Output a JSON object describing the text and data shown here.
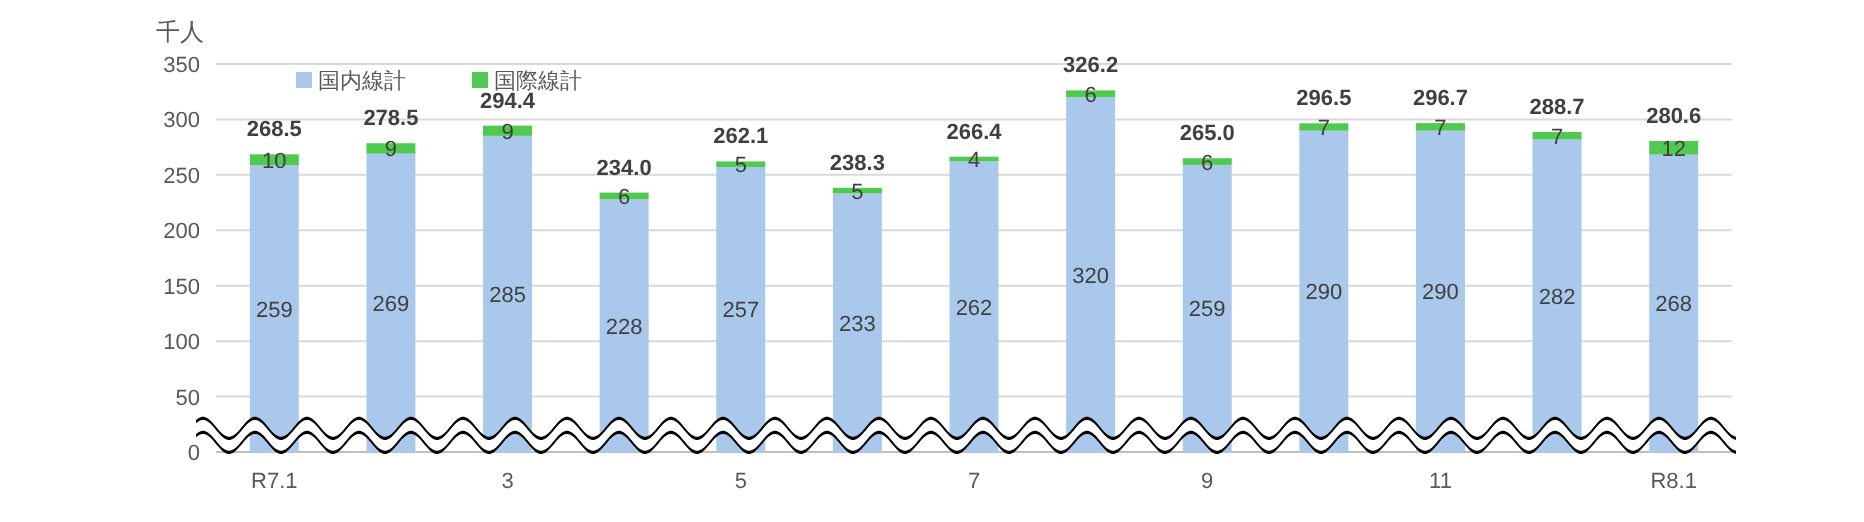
{
  "chart_data": {
    "type": "bar",
    "stacked": true,
    "ylabel": "千人",
    "categories": [
      "R7.1",
      null,
      "3",
      null,
      "5",
      null,
      "7",
      null,
      "9",
      null,
      "11",
      null,
      "R8.1"
    ],
    "series": [
      {
        "name": "国内線計",
        "color": "#a9c8ec",
        "values": [
          258.8,
          269.2,
          285.2,
          228,
          257.1,
          233.2,
          262.2,
          320.1,
          259,
          289.8,
          289.9,
          281.9,
          268.3
        ],
        "value_labels": [
          "259",
          "269",
          "285",
          "228",
          "257",
          "233",
          "262",
          "320",
          "259",
          "290",
          "290",
          "282",
          "268"
        ]
      },
      {
        "name": "国際線計",
        "color": "#4fc94f",
        "values": [
          9.7,
          9.3,
          9.2,
          6,
          5,
          5.1,
          4.2,
          6.1,
          6,
          6.7,
          6.8,
          6.8,
          12.3
        ],
        "value_labels": [
          "10",
          "9",
          "9",
          "6",
          "5",
          "5",
          "4",
          "6",
          "6",
          "7",
          "7",
          "7",
          "12"
        ]
      }
    ],
    "totals": [
      "268.5",
      "278.5",
      "294.4",
      "234.0",
      "262.1",
      "238.3",
      "266.4",
      "326.2",
      "265.0",
      "296.5",
      "296.7",
      "288.7",
      "280.6"
    ],
    "ylim": [
      0,
      350
    ],
    "yticks": [
      0,
      50,
      100,
      150,
      200,
      250,
      300,
      350
    ],
    "grid": "y",
    "legend": "top left"
  }
}
